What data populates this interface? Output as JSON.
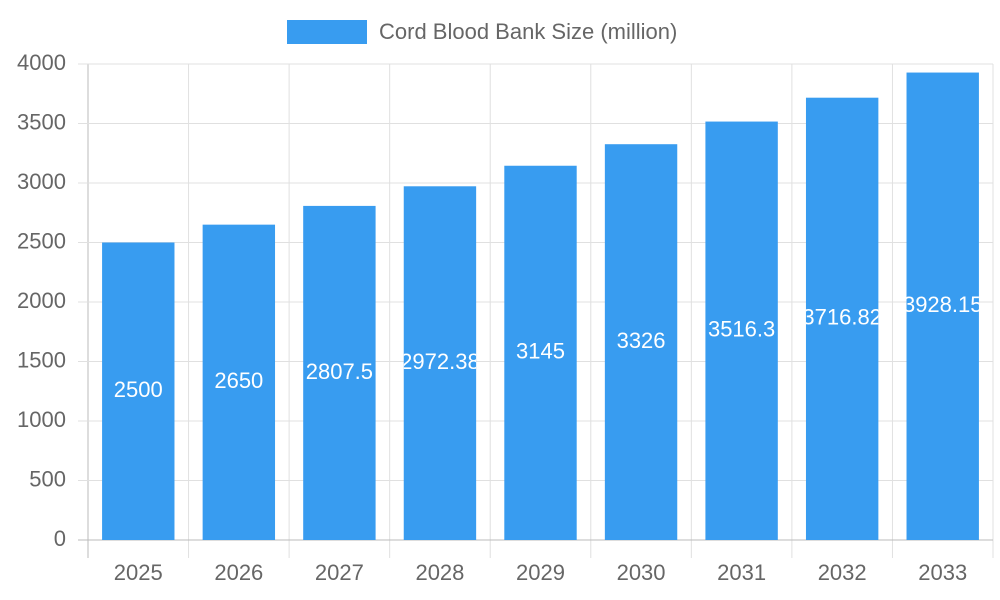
{
  "chart_data": {
    "type": "bar",
    "legend": "Cord Blood Bank Size (million)",
    "categories": [
      "2025",
      "2026",
      "2027",
      "2028",
      "2029",
      "2030",
      "2031",
      "2032",
      "2033"
    ],
    "values": [
      2500,
      2650,
      2807.5,
      2972.38,
      3145,
      3326,
      3516.3,
      3716.82,
      3928.15
    ],
    "color": "#389cf0",
    "ylim": [
      0,
      4000
    ],
    "yticks": [
      0,
      500,
      1000,
      1500,
      2000,
      2500,
      3000,
      3500,
      4000
    ],
    "grid": true
  }
}
